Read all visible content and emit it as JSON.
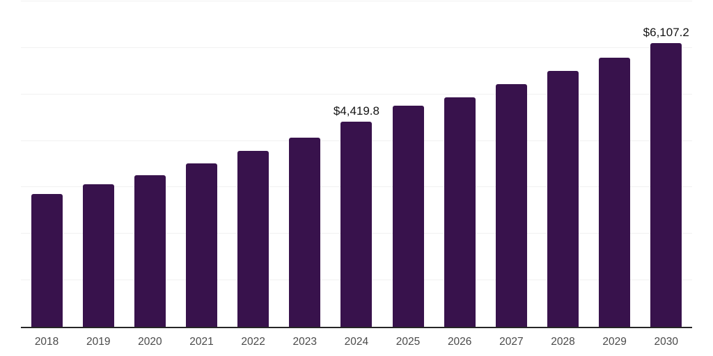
{
  "chart_data": {
    "type": "bar",
    "title": "",
    "xlabel": "",
    "ylabel": "",
    "categories": [
      "2018",
      "2019",
      "2020",
      "2021",
      "2022",
      "2023",
      "2024",
      "2025",
      "2026",
      "2027",
      "2028",
      "2029",
      "2030"
    ],
    "values": [
      2850,
      3060,
      3265,
      3510,
      3790,
      4075,
      4419.8,
      4755,
      4940,
      5225,
      5510,
      5795,
      6107.2
    ],
    "point_labels": [
      "",
      "",
      "",
      "",
      "",
      "",
      "$4,419.8",
      "",
      "",
      "",
      "",
      "",
      "$6,107.2"
    ],
    "ylim": [
      0,
      7000
    ],
    "gridline_interval": 1000,
    "grid": "horizontal",
    "legend": "none"
  },
  "colors": {
    "bar": "#38124c",
    "gridline": "#f1f1f1",
    "axis_line": "#262626",
    "tick_label": "#4a4a4a",
    "value_label": "#141414",
    "background": "#ffffff"
  }
}
